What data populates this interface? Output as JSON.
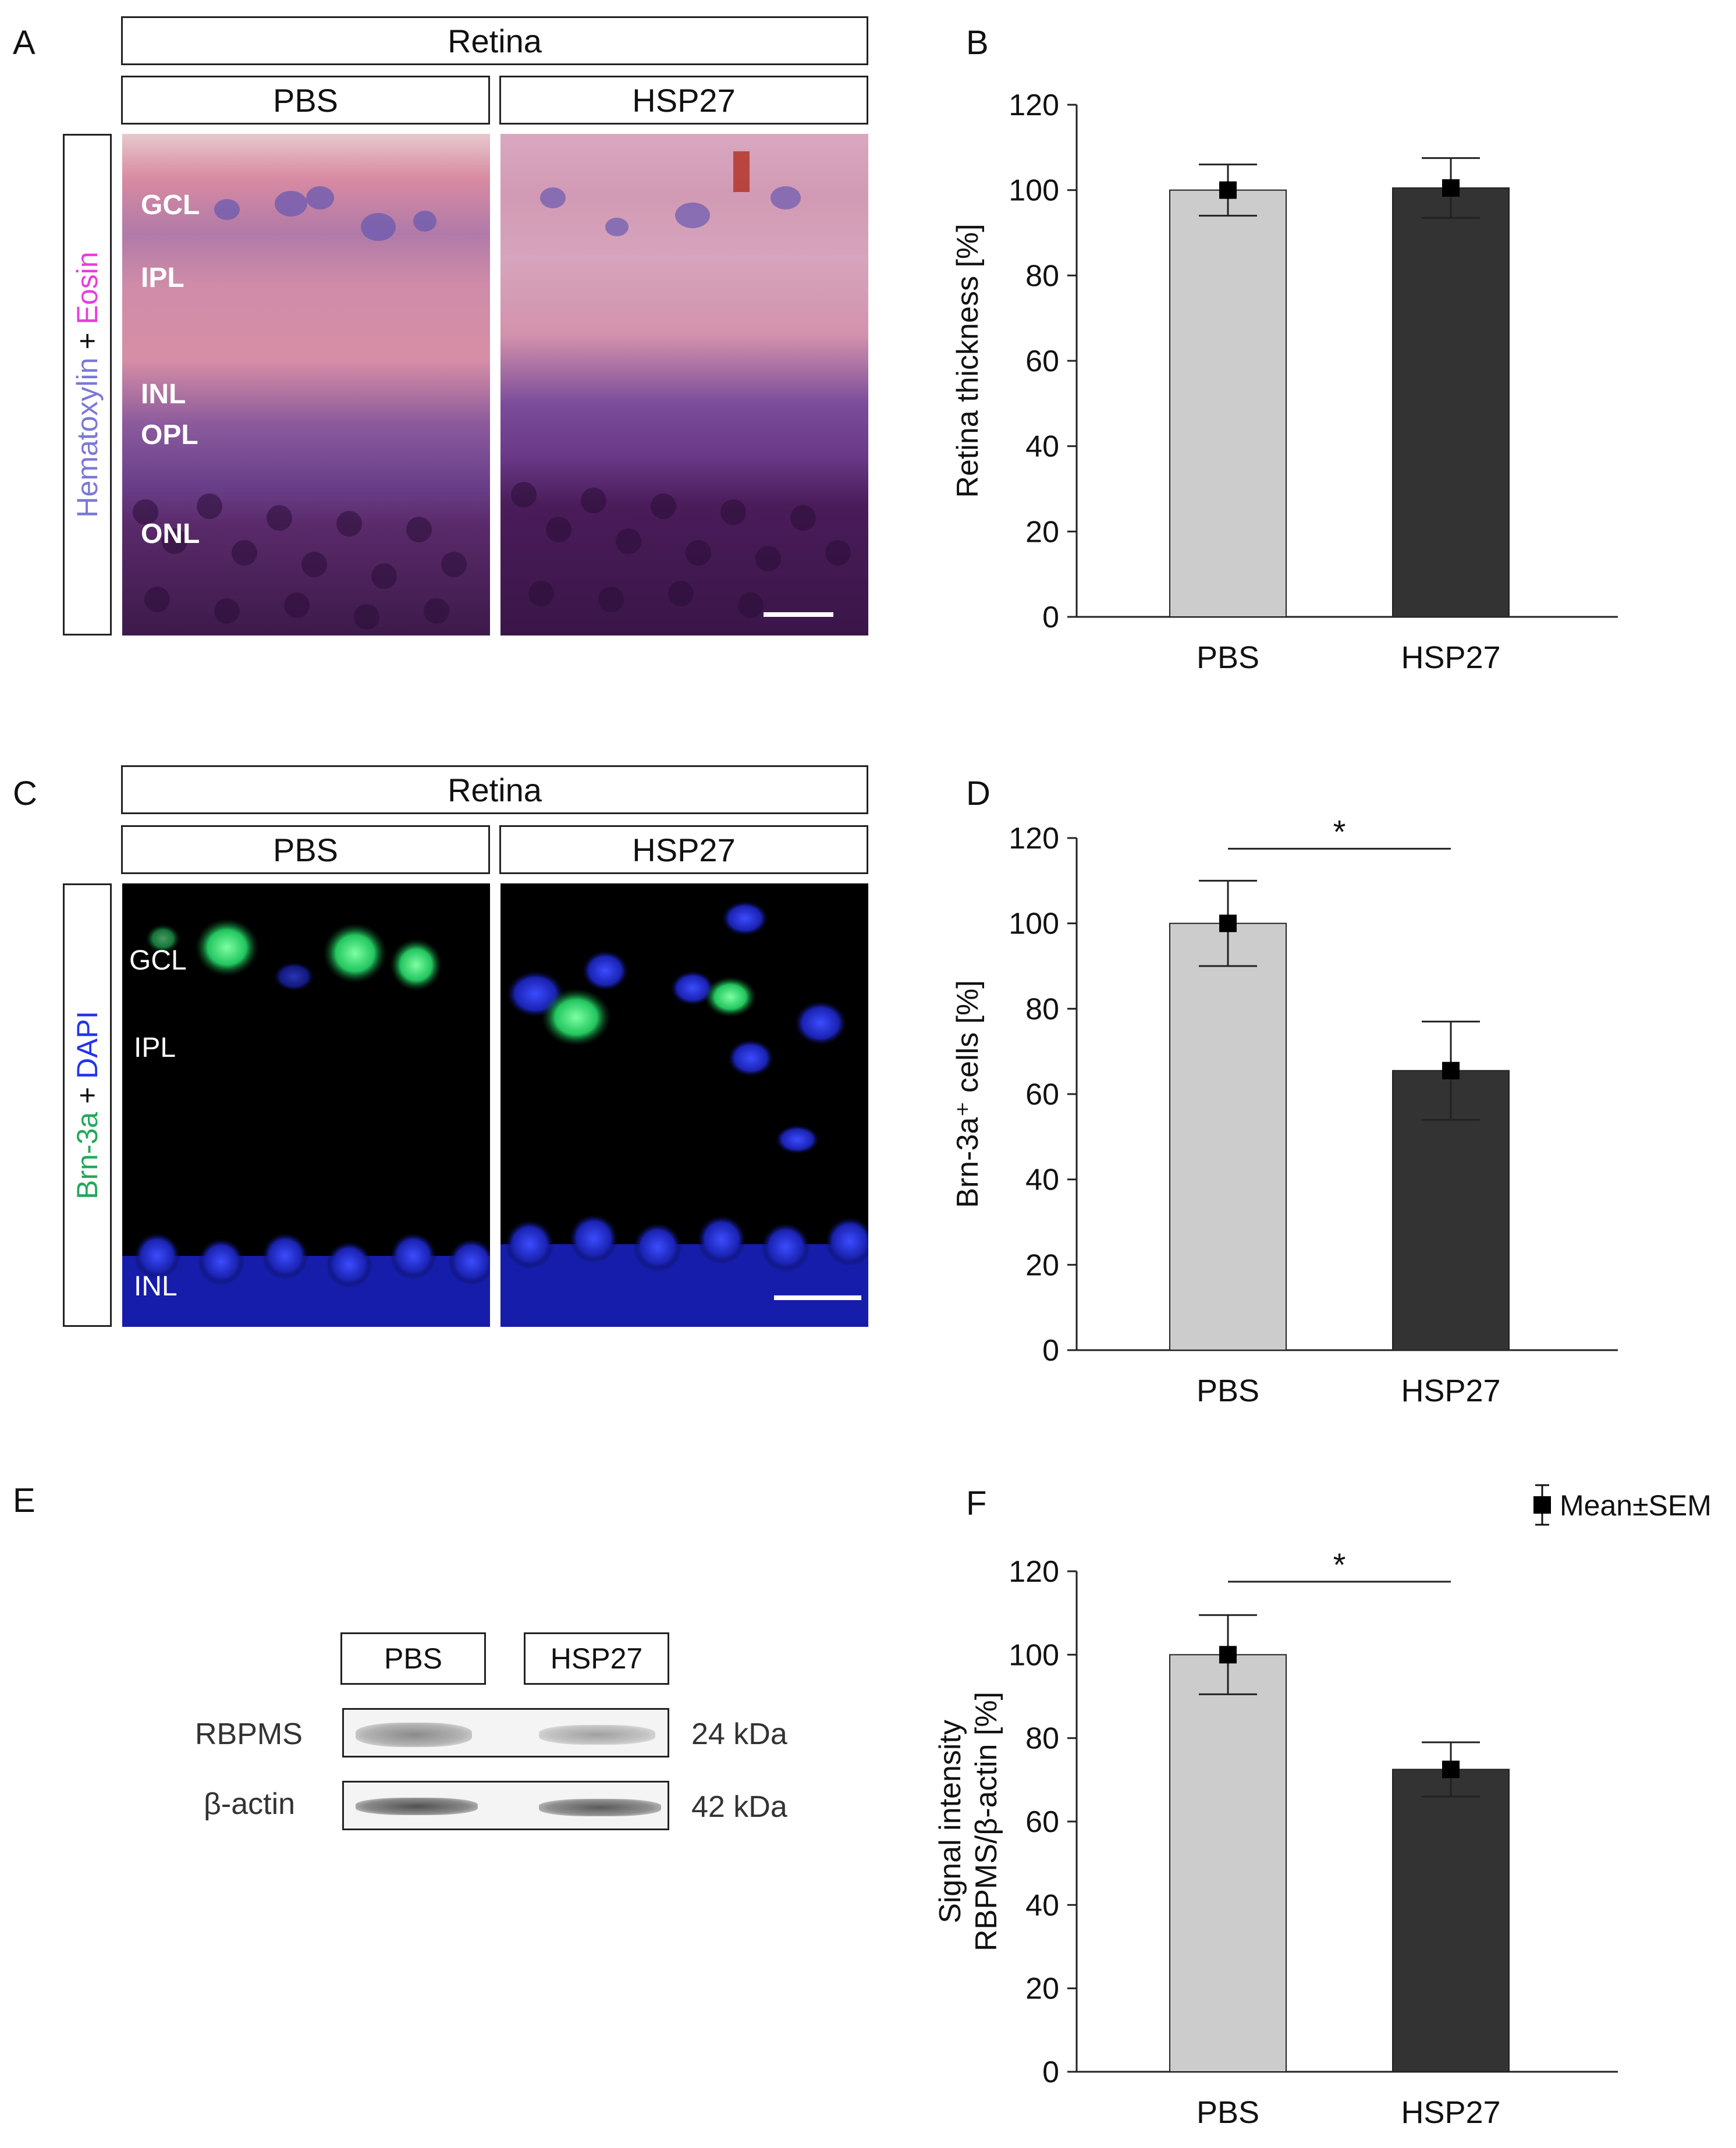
{
  "panels": {
    "A": {
      "letter": "A",
      "header": "Retina",
      "groups": [
        "PBS",
        "HSP27"
      ],
      "stain_label": {
        "part1": "Hematoxylin",
        "plus": " + ",
        "part2": "Eosin"
      },
      "layers": [
        "GCL",
        "IPL",
        "INL",
        "OPL",
        "ONL"
      ]
    },
    "B": {
      "letter": "B"
    },
    "C": {
      "letter": "C",
      "header": "Retina",
      "groups": [
        "PBS",
        "HSP27"
      ],
      "stain_label": {
        "part1": "Brn-3a",
        "plus": " + ",
        "part2": "DAPI"
      },
      "layers": [
        "GCL",
        "IPL",
        "INL"
      ]
    },
    "D": {
      "letter": "D"
    },
    "E": {
      "letter": "E",
      "groups": [
        "PBS",
        "HSP27"
      ],
      "rows": [
        {
          "protein": "RBPMS",
          "size": "24 kDa"
        },
        {
          "protein": "β-actin",
          "size": "42 kDa"
        }
      ]
    },
    "F": {
      "letter": "F"
    }
  },
  "legend": {
    "label": "Mean±SEM"
  },
  "colors": {
    "pbs_bar": "#cccccc",
    "hsp27_bar": "#333333",
    "green": "#22c55e",
    "blue": "#2233ee",
    "magenta": "#e83ce0",
    "hematoxylin": "#7a78d8"
  },
  "chart_data": [
    {
      "panel": "B",
      "type": "bar",
      "categories": [
        "PBS",
        "HSP27"
      ],
      "values": [
        100,
        100.5
      ],
      "errors": [
        6,
        7
      ],
      "ylabel": "Retina thickness  [%]",
      "ylim": [
        0,
        120
      ],
      "yticks": [
        0,
        20,
        40,
        60,
        80,
        100,
        120
      ],
      "significance": ""
    },
    {
      "panel": "D",
      "type": "bar",
      "categories": [
        "PBS",
        "HSP27"
      ],
      "values": [
        100,
        65.5
      ],
      "errors": [
        10,
        11.5
      ],
      "ylabel": "Brn-3a⁺ cells [%]",
      "ylim": [
        0,
        120
      ],
      "yticks": [
        0,
        20,
        40,
        60,
        80,
        100,
        120
      ],
      "significance": "*"
    },
    {
      "panel": "F",
      "type": "bar",
      "categories": [
        "PBS",
        "HSP27"
      ],
      "values": [
        100,
        72.5
      ],
      "errors": [
        9.5,
        6.5
      ],
      "ylabel_lines": [
        "Signal intensity",
        "RBPMS/β-actin  [%]"
      ],
      "ylim": [
        0,
        120
      ],
      "yticks": [
        0,
        20,
        40,
        60,
        80,
        100,
        120
      ],
      "significance": "*"
    }
  ]
}
